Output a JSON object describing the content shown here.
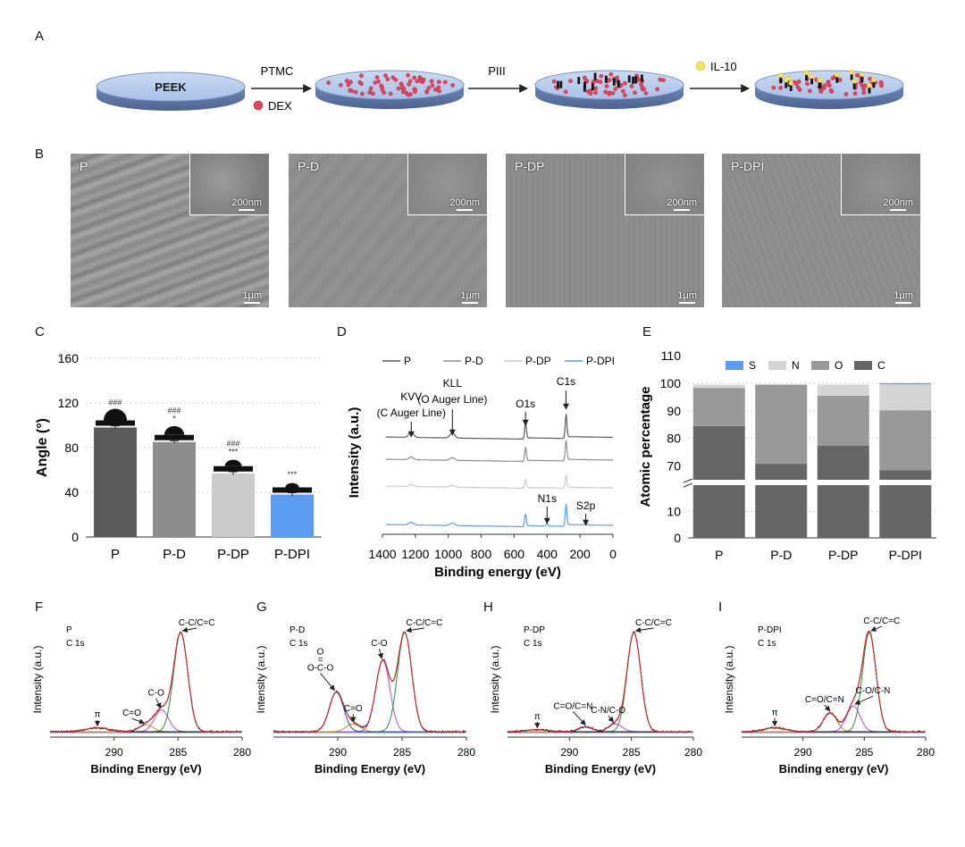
{
  "panels": {
    "a": "A",
    "b": "B",
    "c": "C",
    "d": "D",
    "e": "E",
    "f": "F",
    "g": "G",
    "h": "H",
    "i": "I"
  },
  "schematic": {
    "disk_label": "PEEK",
    "step1_label": "PTMC",
    "dex_label": "DEX",
    "step2_label": "PIII",
    "il10_label": "IL-10"
  },
  "sem": {
    "labels": [
      "P",
      "P-D",
      "P-DP",
      "P-DPI"
    ],
    "inset_scale": "200nm",
    "main_scale": "1μm"
  },
  "colors": {
    "P": "#5a5a5a",
    "P-D": "#8e8e8e",
    "P-DP": "#cbcbcb",
    "P-DPI": "#5b9cf0",
    "C": "#666666",
    "O": "#999999",
    "N": "#d4d4d4",
    "S": "#5b9cf0",
    "fit_total": "#d23030",
    "fit_main": "#2e8b3a",
    "fit_co": "#b04fd0",
    "fit_pi": "#c98a2a",
    "raw": "#111111",
    "blue_peak": "#1f4aa0"
  },
  "chart_data": [
    {
      "id": "C",
      "type": "bar",
      "ylabel": "Angle (°)",
      "ylim": [
        0,
        160
      ],
      "yticks": [
        0,
        40,
        80,
        120,
        160
      ],
      "categories": [
        "P",
        "P-D",
        "P-DP",
        "P-DPI"
      ],
      "values": [
        98,
        85,
        57,
        38
      ],
      "errors": [
        1.5,
        1.2,
        1.4,
        1.6
      ],
      "annotations": [
        [
          "###"
        ],
        [
          "###",
          "*"
        ],
        [
          "###",
          "***"
        ],
        [
          "***"
        ]
      ],
      "grid": "horizontal dashed"
    },
    {
      "id": "D",
      "type": "line",
      "xlabel": "Binding energy (eV)",
      "ylabel": "Intensity (a.u.)",
      "xlim": [
        1400,
        0
      ],
      "xticks": [
        1400,
        1200,
        1000,
        800,
        600,
        400,
        200,
        0
      ],
      "legend": [
        "P",
        "P-D",
        "P-DP",
        "P-DPI"
      ],
      "annotations": [
        "KVV",
        "(C Auger Line)",
        "KLL",
        "(O Auger Line)",
        "O1s",
        "C1s",
        "N1s",
        "S2p"
      ],
      "peaks_eV": {
        "KVV": 1225,
        "KLL": 975,
        "O1s": 531,
        "C1s": 285,
        "N1s": 400,
        "S2p": 165
      }
    },
    {
      "id": "E",
      "type": "bar",
      "stacked": true,
      "ylabel": "Atomic percentage",
      "yticks_upper": [
        70,
        80,
        90,
        100,
        110
      ],
      "yticks_lower": [
        0,
        10
      ],
      "categories": [
        "P",
        "P-D",
        "P-DP",
        "P-DPI"
      ],
      "legend": [
        "S",
        "N",
        "O",
        "C"
      ],
      "series": [
        {
          "name": "C",
          "values": [
            84.5,
            70.8,
            77.3,
            68.5
          ]
        },
        {
          "name": "O",
          "values": [
            13.8,
            28.7,
            18.2,
            21.7
          ]
        },
        {
          "name": "N",
          "values": [
            1.2,
            0.0,
            4.0,
            9.5
          ]
        },
        {
          "name": "S",
          "values": [
            0.0,
            0.0,
            0.0,
            0.3
          ]
        }
      ]
    },
    {
      "id": "F",
      "type": "line",
      "xlabel": "Binding Energy (eV)",
      "ylabel": "Intensity (a.u.)",
      "xlim": [
        295,
        280
      ],
      "xticks": [
        290,
        285,
        280
      ],
      "sample": "P",
      "core_level": "C 1s",
      "components": [
        {
          "name": "C-C/C=C",
          "center": 284.8,
          "height": 1.0
        },
        {
          "name": "C-O",
          "center": 286.3,
          "height": 0.22
        },
        {
          "name": "C=O",
          "center": 287.5,
          "height": 0.07
        },
        {
          "name": "π",
          "center": 291.3,
          "height": 0.04
        }
      ]
    },
    {
      "id": "G",
      "type": "line",
      "xlabel": "Binding Energy (eV)",
      "ylabel": "Intensity (a.u.)",
      "xlim": [
        295,
        280
      ],
      "xticks": [
        290,
        285,
        280
      ],
      "sample": "P-D",
      "core_level": "C 1s",
      "o_label": "O",
      "eq_label": "=",
      "components": [
        {
          "name": "C-C/C=C",
          "center": 284.8,
          "height": 1.0
        },
        {
          "name": "C-O",
          "center": 286.5,
          "height": 0.72
        },
        {
          "name": "C=O",
          "center": 288.8,
          "height": 0.08
        },
        {
          "name": "O-C-O",
          "center": 290.1,
          "height": 0.4
        }
      ]
    },
    {
      "id": "H",
      "type": "line",
      "xlabel": "Binding Energy (eV)",
      "ylabel": "Intensity (a.u.)",
      "xlim": [
        295,
        280
      ],
      "xticks": [
        290,
        285,
        280
      ],
      "sample": "P-DP",
      "core_level": "C 1s",
      "components": [
        {
          "name": "C-C/C=C",
          "center": 284.8,
          "height": 1.0
        },
        {
          "name": "C-N/C-O",
          "center": 286.3,
          "height": 0.08
        },
        {
          "name": "C=O/C=N",
          "center": 288.7,
          "height": 0.05
        },
        {
          "name": "π",
          "center": 292.6,
          "height": 0.02
        }
      ]
    },
    {
      "id": "I",
      "type": "line",
      "xlabel": "Binding energy (eV)",
      "ylabel": "Intensity (a.u.)",
      "xlim": [
        295,
        280
      ],
      "xticks": [
        290,
        285,
        280
      ],
      "sample": "P-DPI",
      "core_level": "C 1s",
      "components": [
        {
          "name": "C-C/C=C",
          "center": 284.6,
          "height": 1.0
        },
        {
          "name": "C-O/C-N",
          "center": 285.9,
          "height": 0.26
        },
        {
          "name": "C=O/C=N",
          "center": 287.8,
          "height": 0.19
        },
        {
          "name": "π",
          "center": 292.3,
          "height": 0.04
        }
      ]
    }
  ]
}
